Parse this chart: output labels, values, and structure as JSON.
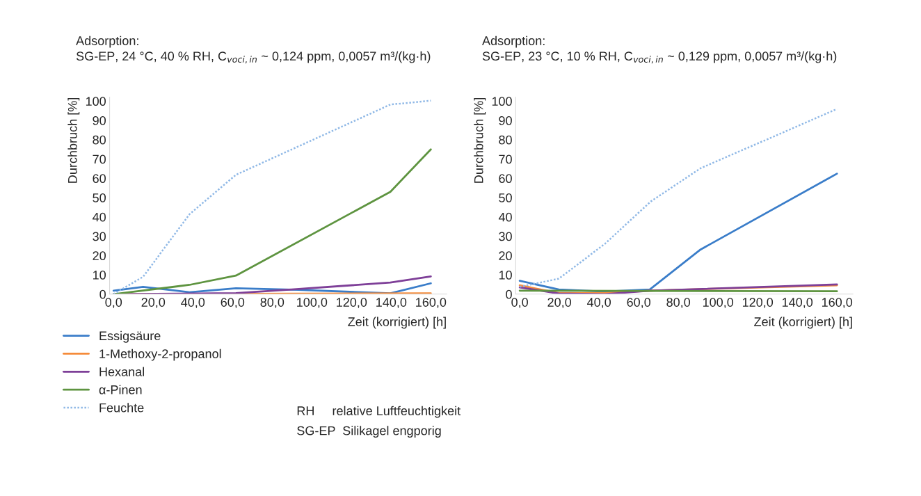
{
  "chart_data": [
    {
      "type": "line",
      "title": "Adsorption:\nSG-EP, 24 °C, 40 % RH, C$_{voci,in}$ ~ 0,124 ppm, 0,0057 m³/(kg·h)",
      "xlabel": "Zeit (korrigiert) [h]",
      "ylabel": "Durchbruch [%]",
      "xlim": [
        -2,
        168
      ],
      "ylim": [
        0,
        102
      ],
      "xticks": [
        {
          "value": 0,
          "label": "0,0"
        },
        {
          "value": 20,
          "label": "20,0"
        },
        {
          "value": 40,
          "label": "40,0"
        },
        {
          "value": 60,
          "label": "60,0"
        },
        {
          "value": 80,
          "label": "80,0"
        },
        {
          "value": 100,
          "label": "100,0"
        },
        {
          "value": 120,
          "label": "120,0"
        },
        {
          "value": 140,
          "label": "140,0"
        },
        {
          "value": 160,
          "label": "160,0"
        }
      ],
      "yticks": [
        0,
        10,
        20,
        30,
        40,
        50,
        60,
        70,
        80,
        90,
        100
      ],
      "grid": false,
      "legend": "bottom left",
      "annotations": [
        "RH     relative Luftfeuchtigkeit",
        "SG-EP  Silikagel engporig"
      ],
      "series": [
        {
          "name": "Essigsäure",
          "color": "#3a7dc9",
          "line_style": "solid",
          "x": [
            0,
            14.9,
            38.3,
            61.7,
            93.3,
            139.6,
            160
          ],
          "values": [
            1.8,
            3.8,
            1,
            3,
            2.2,
            0.4,
            5.6
          ]
        },
        {
          "name": "1-Methoxy-2-propanol",
          "color": "#f58b3a",
          "line_style": "solid",
          "x": [
            0,
            160
          ],
          "values": [
            0,
            0.4
          ]
        },
        {
          "name": "Hexanal",
          "color": "#7e3f98",
          "line_style": "solid",
          "x": [
            0,
            61.7,
            89.8,
            139.6,
            160
          ],
          "values": [
            0,
            0.5,
            2.4,
            6,
            9.2
          ]
        },
        {
          "name": "α-Pinen",
          "color": "#5e9440",
          "line_style": "solid",
          "x": [
            0,
            38.3,
            61.7,
            139.6,
            160
          ],
          "values": [
            0,
            4.8,
            9.6,
            53,
            75
          ]
        },
        {
          "name": "Feuchte",
          "color": "#8fb8e6",
          "line_style": "dotted",
          "x": [
            0,
            14.9,
            38.3,
            61.7,
            139.6,
            160
          ],
          "values": [
            0,
            9,
            41.4,
            61.8,
            98.2,
            100.2
          ]
        }
      ]
    },
    {
      "type": "line",
      "title": "Adsorption:\nSG-EP, 23 °C, 10 % RH, C$_{voci,in}$ ~ 0,129 ppm, 0,0057 m³/(kg·h)",
      "xlabel": "Zeit (korrigiert) [h]",
      "ylabel": "Durchbruch [%]",
      "xlim": [
        -2,
        168
      ],
      "ylim": [
        0,
        102
      ],
      "xticks": [
        {
          "value": 0,
          "label": "0,0"
        },
        {
          "value": 20,
          "label": "20,0"
        },
        {
          "value": 40,
          "label": "40,0"
        },
        {
          "value": 60,
          "label": "60,0"
        },
        {
          "value": 80,
          "label": "80,0"
        },
        {
          "value": 100,
          "label": "100,0"
        },
        {
          "value": 120,
          "label": "120,0"
        },
        {
          "value": 140,
          "label": "140,0"
        },
        {
          "value": 160,
          "label": "160,0"
        }
      ],
      "yticks": [
        0,
        10,
        20,
        30,
        40,
        50,
        60,
        70,
        80,
        90,
        100
      ],
      "grid": false,
      "series": [
        {
          "color": "#3a7dc9",
          "line_style": "solid",
          "x": [
            0,
            19.7,
            42.9,
            65.6,
            91.2,
            160
          ],
          "values": [
            6.9,
            2.4,
            1.3,
            2.4,
            23.1,
            62.4
          ]
        },
        {
          "color": "#f58b3a",
          "line_style": "solid",
          "x": [
            0,
            19.7,
            42.9,
            65.6,
            160
          ],
          "values": [
            4.6,
            0.5,
            0.5,
            1.8,
            4.6
          ]
        },
        {
          "color": "#7e3f98",
          "line_style": "solid",
          "x": [
            0,
            19.7,
            42.9,
            65.6,
            160
          ],
          "values": [
            3.5,
            0.3,
            0,
            1.8,
            5
          ]
        },
        {
          "color": "#5e9440",
          "line_style": "solid",
          "x": [
            0,
            160
          ],
          "values": [
            1.8,
            1.5
          ]
        },
        {
          "color": "#8fb8e6",
          "line_style": "dotted",
          "x": [
            0,
            19.7,
            42.9,
            66.1,
            91.2,
            160
          ],
          "values": [
            3.8,
            8,
            26,
            48,
            65.2,
            95.9
          ]
        }
      ]
    }
  ]
}
